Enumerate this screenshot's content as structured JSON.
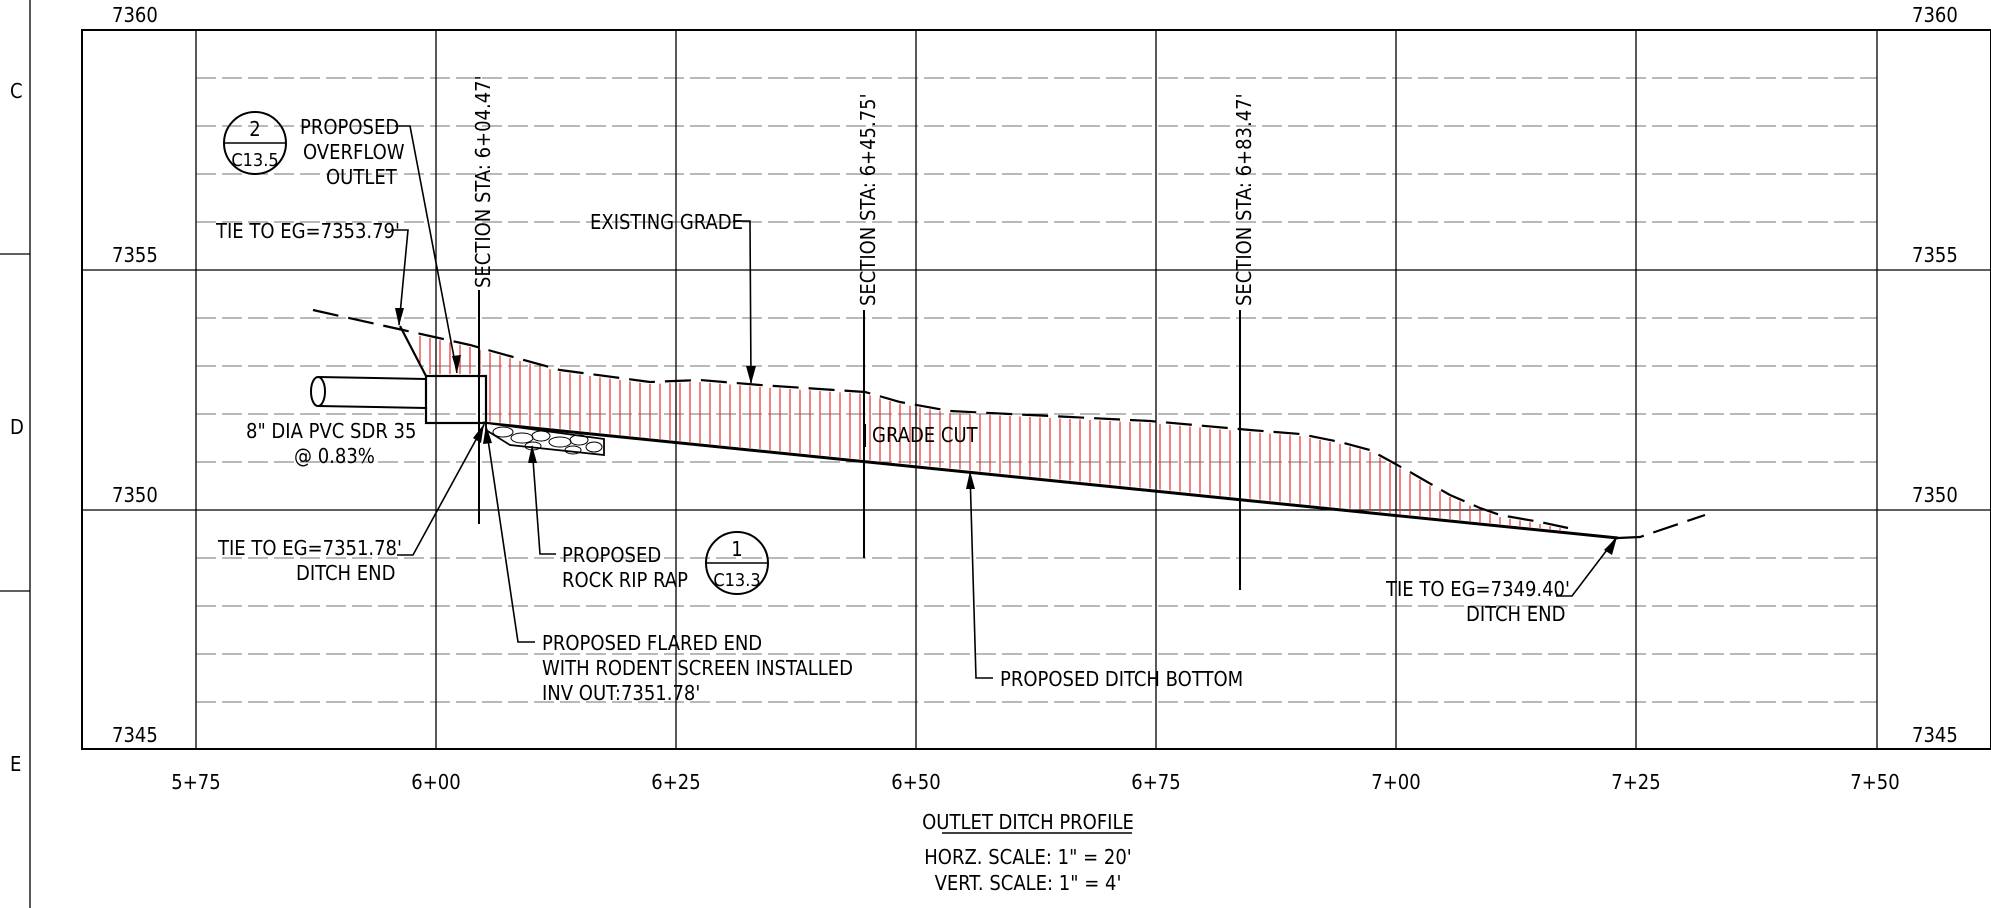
{
  "sheet_rows": {
    "c": "C",
    "d": "D",
    "e": "E"
  },
  "elevations": {
    "e7360": "7360",
    "e7355": "7355",
    "e7350": "7350",
    "e7345": "7345"
  },
  "stations": {
    "s575": "5+75",
    "s600": "6+00",
    "s625": "6+25",
    "s650": "6+50",
    "s675": "6+75",
    "s700": "7+00",
    "s725": "7+25",
    "s750": "7+50"
  },
  "sections": {
    "sec1": "SECTION STA: 6+04.47'",
    "sec2": "SECTION STA: 6+45.75'",
    "sec3": "SECTION STA: 6+83.47'"
  },
  "callouts": {
    "detail2_num": "2",
    "detail2_sheet": "C13.5",
    "detail1_num": "1",
    "detail1_sheet": "C13.3",
    "overflow_1": "PROPOSED",
    "overflow_2": "OVERFLOW",
    "overflow_3": "OUTLET",
    "tie_top": "TIE TO EG=7353.79'",
    "existing_grade": "EXISTING GRADE",
    "pipe_1": "8\" DIA PVC SDR 35",
    "pipe_2": "@ 0.83%",
    "grade_cut": "GRADE CUT",
    "tie_left_1": "TIE TO EG=7351.78'",
    "tie_left_2": "DITCH END",
    "riprap_1": "PROPOSED",
    "riprap_2": "ROCK RIP RAP",
    "flared_1": "PROPOSED FLARED END",
    "flared_2": "WITH RODENT SCREEN INSTALLED",
    "flared_3": "INV OUT:7351.78'",
    "ditch_bottom": "PROPOSED DITCH BOTTOM",
    "tie_right_1": "TIE TO EG=7349.40'",
    "tie_right_2": "DITCH END"
  },
  "title": {
    "name": "OUTLET DITCH PROFILE",
    "horz": "HORZ. SCALE: 1\" = 20'",
    "vert": "VERT. SCALE: 1\" = 4'"
  },
  "colors": {
    "cut_hatch": "#e8302a",
    "line": "#000000"
  }
}
